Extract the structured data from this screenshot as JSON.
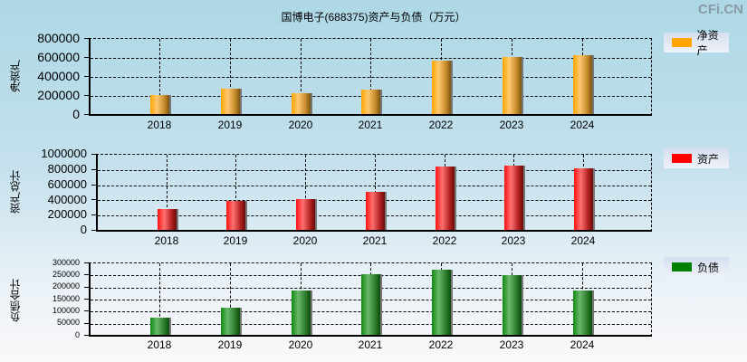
{
  "title": "国博电子(688375)资产与负债（万元）",
  "watermark": "CFi.CN",
  "colors": {
    "net_assets": "#ffa500",
    "assets": "#ff0000",
    "liabilities": "#008000"
  },
  "panels": [
    {
      "ylabel": "净资产",
      "legend": "净资产",
      "yticks": [
        "800000",
        "600000",
        "400000",
        "200000",
        "0"
      ],
      "xticks": [
        "2018",
        "2019",
        "2020",
        "2021",
        "2022",
        "2023",
        "2024"
      ]
    },
    {
      "ylabel": "资产总计",
      "legend": "资产",
      "yticks": [
        "1000000",
        "800000",
        "600000",
        "400000",
        "200000",
        "0"
      ],
      "xticks": [
        "2018",
        "2019",
        "2020",
        "2021",
        "2022",
        "2023",
        "2024"
      ]
    },
    {
      "ylabel": "负债合计",
      "legend": "负债",
      "yticks": [
        "300000",
        "250000",
        "200000",
        "150000",
        "100000",
        "50000",
        "0"
      ],
      "xticks": [
        "2018",
        "2019",
        "2020",
        "2021",
        "2022",
        "2023",
        "2024"
      ]
    }
  ],
  "chart_data": [
    {
      "type": "bar",
      "title": "国博电子(688375)资产与负债（万元）",
      "xlabel": "",
      "ylabel": "净资产",
      "categories": [
        "2018",
        "2019",
        "2020",
        "2021",
        "2022",
        "2023",
        "2024"
      ],
      "series": [
        {
          "name": "净资产",
          "values": [
            200000,
            267000,
            219000,
            257000,
            562000,
            600000,
            619000
          ]
        }
      ],
      "ylim": [
        0,
        800000
      ],
      "grid": true,
      "legend_position": "right"
    },
    {
      "type": "bar",
      "xlabel": "",
      "ylabel": "资产总计",
      "categories": [
        "2018",
        "2019",
        "2020",
        "2021",
        "2022",
        "2023",
        "2024"
      ],
      "series": [
        {
          "name": "资产",
          "values": [
            274000,
            381000,
            405000,
            500000,
            833000,
            845000,
            810000
          ]
        }
      ],
      "ylim": [
        0,
        1000000
      ],
      "grid": true,
      "legend_position": "right"
    },
    {
      "type": "bar",
      "xlabel": "",
      "ylabel": "负债合计",
      "categories": [
        "2018",
        "2019",
        "2020",
        "2021",
        "2022",
        "2023",
        "2024"
      ],
      "series": [
        {
          "name": "负债",
          "values": [
            71000,
            112000,
            184000,
            251000,
            270000,
            248000,
            184000
          ]
        }
      ],
      "ylim": [
        0,
        300000
      ],
      "grid": true,
      "legend_position": "right"
    }
  ]
}
